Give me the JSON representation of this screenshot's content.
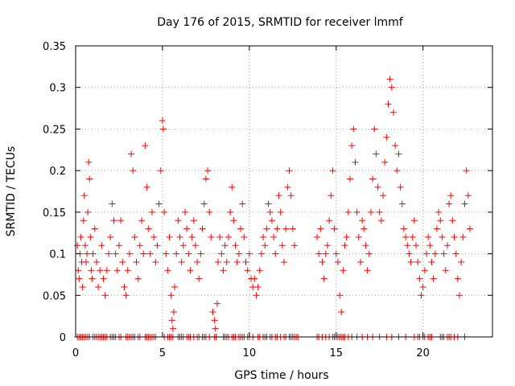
{
  "chart_data": {
    "type": "scatter",
    "title": "Day 176 of 2015, SRMTID for receiver lmmf",
    "xlabel": "GPS time / hours",
    "ylabel": "SRMTID / TECUs",
    "xlim": [
      0,
      24
    ],
    "ylim": [
      0,
      0.35
    ],
    "xticks": [
      0,
      5,
      10,
      15,
      20
    ],
    "xtick_labels": [
      "0",
      "5",
      "10",
      "15",
      "20"
    ],
    "yticks": [
      0,
      0.05,
      0.1,
      0.15,
      0.2,
      0.25,
      0.3,
      0.35
    ],
    "ytick_labels": [
      "0",
      "0.05",
      "0.1",
      "0.15",
      "0.2",
      "0.25",
      "0.3",
      "0.35"
    ],
    "grid": true,
    "marker": "+",
    "marker_color": "#ff0000",
    "series": [
      {
        "name": "SRMTID",
        "x": [
          0.1,
          0.15,
          0.2,
          0.25,
          0.3,
          0.35,
          0.4,
          0.45,
          0.5,
          0.55,
          0.6,
          0.65,
          0.7,
          0.75,
          0.8,
          0.85,
          0.9,
          0.95,
          1.0,
          1.1,
          1.2,
          1.3,
          1.4,
          1.5,
          1.6,
          1.7,
          1.8,
          1.9,
          2.0,
          2.1,
          2.2,
          2.3,
          2.4,
          2.5,
          2.6,
          2.7,
          2.8,
          2.9,
          3.0,
          3.1,
          3.2,
          3.3,
          3.4,
          3.5,
          3.6,
          3.7,
          3.8,
          3.9,
          4.0,
          4.1,
          4.2,
          4.3,
          4.4,
          4.5,
          4.6,
          4.7,
          4.8,
          4.9,
          5.0,
          5.05,
          5.1,
          5.2,
          5.3,
          5.4,
          5.5,
          5.55,
          5.6,
          5.65,
          5.7,
          5.8,
          5.9,
          6.0,
          6.1,
          6.2,
          6.3,
          6.4,
          6.5,
          6.6,
          6.7,
          6.8,
          6.9,
          7.0,
          7.1,
          7.2,
          7.3,
          7.4,
          7.5,
          7.6,
          7.7,
          7.8,
          7.9,
          8.0,
          8.05,
          8.1,
          8.15,
          8.2,
          8.3,
          8.4,
          8.5,
          8.6,
          8.7,
          8.8,
          8.9,
          9.0,
          9.1,
          9.2,
          9.3,
          9.4,
          9.5,
          9.6,
          9.7,
          9.8,
          9.9,
          10.0,
          10.1,
          10.2,
          10.3,
          10.4,
          10.5,
          10.6,
          10.7,
          10.8,
          10.9,
          11.0,
          11.1,
          11.2,
          11.3,
          11.4,
          11.5,
          11.6,
          11.7,
          11.8,
          11.9,
          12.0,
          12.1,
          12.2,
          12.3,
          12.4,
          12.5,
          12.6,
          13.9,
          14.0,
          14.1,
          14.2,
          14.3,
          14.4,
          14.5,
          14.6,
          14.7,
          14.8,
          14.9,
          15.0,
          15.1,
          15.2,
          15.3,
          15.4,
          15.5,
          15.6,
          15.7,
          15.8,
          15.9,
          16.0,
          16.1,
          16.2,
          16.3,
          16.4,
          16.5,
          16.6,
          16.7,
          16.8,
          16.9,
          17.0,
          17.1,
          17.2,
          17.3,
          17.4,
          17.5,
          17.6,
          17.7,
          17.8,
          17.9,
          18.0,
          18.1,
          18.2,
          18.3,
          18.4,
          18.5,
          18.6,
          18.7,
          18.8,
          18.9,
          19.0,
          19.1,
          19.2,
          19.3,
          19.4,
          19.5,
          19.6,
          19.7,
          19.8,
          19.9,
          20.0,
          20.1,
          20.2,
          20.3,
          20.4,
          20.5,
          20.6,
          20.7,
          20.8,
          20.9,
          21.0,
          21.1,
          21.2,
          21.3,
          21.4,
          21.5,
          21.6,
          21.7,
          21.8,
          21.9,
          22.0,
          22.1,
          22.2,
          22.3,
          22.4,
          22.5,
          22.6,
          22.7
        ],
        "y": [
          0.11,
          0.08,
          0.07,
          0.1,
          0.12,
          0.09,
          0.06,
          0.14,
          0.17,
          0.11,
          0.09,
          0.1,
          0.15,
          0.21,
          0.19,
          0.12,
          0.08,
          0.07,
          0.1,
          0.13,
          0.09,
          0.06,
          0.08,
          0.11,
          0.07,
          0.05,
          0.08,
          0.1,
          0.12,
          0.16,
          0.14,
          0.1,
          0.08,
          0.11,
          0.14,
          0.09,
          0.06,
          0.05,
          0.08,
          0.1,
          0.22,
          0.2,
          0.12,
          0.09,
          0.07,
          0.11,
          0.14,
          0.1,
          0.23,
          0.18,
          0.13,
          0.1,
          0.15,
          0.12,
          0.09,
          0.11,
          0.16,
          0.2,
          0.26,
          0.25,
          0.15,
          0.1,
          0.08,
          0.12,
          0.05,
          0.02,
          0.01,
          0.03,
          0.06,
          0.1,
          0.14,
          0.12,
          0.09,
          0.11,
          0.15,
          0.13,
          0.1,
          0.08,
          0.12,
          0.14,
          0.11,
          0.09,
          0.07,
          0.1,
          0.13,
          0.16,
          0.19,
          0.2,
          0.15,
          0.12,
          0.03,
          0.02,
          0.01,
          0.0,
          0.04,
          0.09,
          0.12,
          0.1,
          0.08,
          0.11,
          0.09,
          0.12,
          0.15,
          0.18,
          0.14,
          0.11,
          0.09,
          0.1,
          0.13,
          0.16,
          0.12,
          0.09,
          0.08,
          0.1,
          0.07,
          0.06,
          0.07,
          0.05,
          0.06,
          0.08,
          0.1,
          0.12,
          0.11,
          0.13,
          0.16,
          0.15,
          0.14,
          0.12,
          0.1,
          0.13,
          0.17,
          0.15,
          0.11,
          0.09,
          0.13,
          0.18,
          0.2,
          0.17,
          0.13,
          0.11,
          0.12,
          0.1,
          0.13,
          0.09,
          0.07,
          0.1,
          0.11,
          0.14,
          0.17,
          0.2,
          0.13,
          0.1,
          0.09,
          0.05,
          0.03,
          0.08,
          0.11,
          0.12,
          0.15,
          0.19,
          0.23,
          0.25,
          0.21,
          0.15,
          0.12,
          0.09,
          0.14,
          0.13,
          0.11,
          0.08,
          0.1,
          0.15,
          0.19,
          0.25,
          0.22,
          0.18,
          0.15,
          0.14,
          0.17,
          0.21,
          0.24,
          0.28,
          0.31,
          0.3,
          0.27,
          0.23,
          0.2,
          0.22,
          0.18,
          0.16,
          0.13,
          0.12,
          0.11,
          0.1,
          0.09,
          0.12,
          0.14,
          0.11,
          0.09,
          0.07,
          0.05,
          0.06,
          0.08,
          0.1,
          0.12,
          0.11,
          0.09,
          0.07,
          0.1,
          0.13,
          0.15,
          0.14,
          0.12,
          0.1,
          0.08,
          0.11,
          0.16,
          0.17,
          0.14,
          0.12,
          0.1,
          0.07,
          0.05,
          0.09,
          0.12,
          0.16,
          0.2,
          0.17,
          0.13
        ]
      }
    ],
    "zero_points_x": [
      0.1,
      0.2,
      0.3,
      0.4,
      0.5,
      0.6,
      0.7,
      0.8,
      1.0,
      1.1,
      1.2,
      1.3,
      1.4,
      1.5,
      1.6,
      1.7,
      1.8,
      2.0,
      2.1,
      2.2,
      2.3,
      2.5,
      2.6,
      2.9,
      3.0,
      3.1,
      3.2,
      3.3,
      3.4,
      3.6,
      3.7,
      4.0,
      4.1,
      4.2,
      4.3,
      4.4,
      4.5,
      4.6,
      5.1,
      5.3,
      5.4,
      5.5,
      5.6,
      5.9,
      6.0,
      6.1,
      6.2,
      6.4,
      6.5,
      6.6,
      6.8,
      7.0,
      7.1,
      7.3,
      7.4,
      7.5,
      7.7,
      8.0,
      8.1,
      8.5,
      8.6,
      8.7,
      8.8,
      9.0,
      9.1,
      9.2,
      9.4,
      9.5,
      9.6,
      9.7,
      9.9,
      10.0,
      10.2,
      10.5,
      10.6,
      10.8,
      10.9,
      11.0,
      11.2,
      11.3,
      11.5,
      11.6,
      11.8,
      12.0,
      12.1,
      12.3,
      12.4,
      12.5,
      12.6,
      12.7,
      12.8,
      13.9,
      14.0,
      14.2,
      14.4,
      14.6,
      14.8,
      14.9,
      15.0,
      15.1,
      15.2,
      15.3,
      15.4,
      15.5,
      15.7,
      15.9,
      16.2,
      16.5,
      16.8,
      17.1,
      17.5,
      17.9,
      18.2,
      18.6,
      19.0,
      19.5,
      19.7,
      19.8,
      20.0,
      20.1,
      20.3,
      20.4,
      20.5,
      21.0,
      21.1,
      21.2,
      21.4,
      21.5,
      21.6,
      21.8,
      22.0,
      22.4
    ]
  }
}
